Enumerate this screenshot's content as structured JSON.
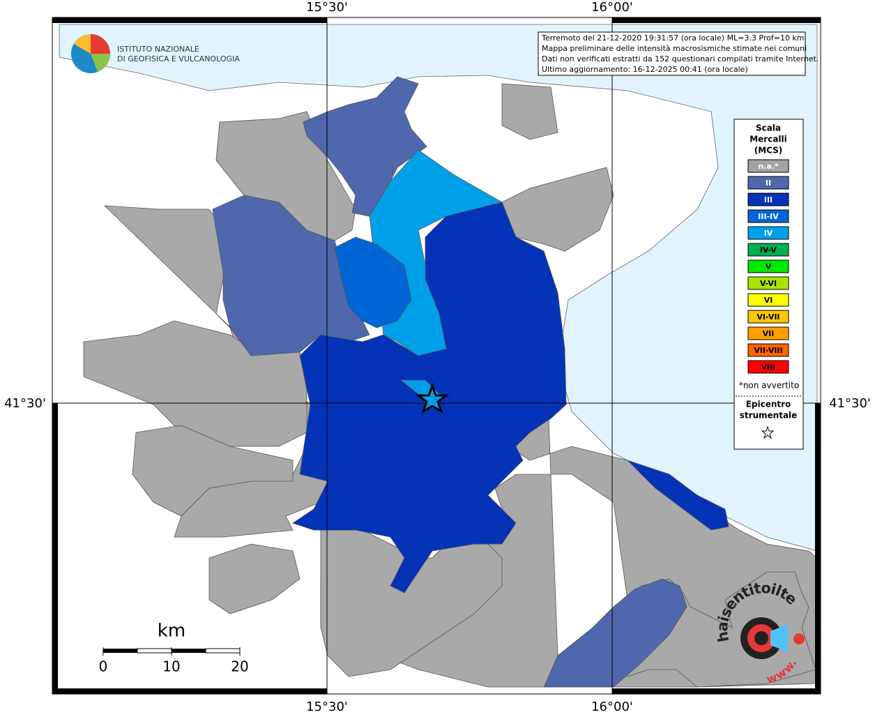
{
  "coordinates": {
    "top": [
      "15°30'",
      "16°00'"
    ],
    "bottom": [
      "15°30'",
      "16°00'"
    ],
    "left": "41°30'",
    "right": "41°30'"
  },
  "info": [
    "Terremoto del 21-12-2020 19:31:57 (ora locale) ML=3.3 Prof=10 km",
    "Mappa preliminare delle intensità macrosismiche stimate nei comuni",
    "Dati non verificati estratti da 152 questionari compilati tramite Internet.",
    "Ultimo aggiornamento: 16-12-2025 00:41 (ora locale)"
  ],
  "logo": {
    "lines": [
      "ISTITUTO NAZIONALE",
      "DI GEOFISICA E VULCANOLOGIA"
    ]
  },
  "legend": {
    "title": [
      "Scala",
      "Mercalli",
      "(MCS)"
    ],
    "items": [
      {
        "label": "n.a.*",
        "color": "#a3a3a3",
        "text_color": "#ffffff"
      },
      {
        "label": "II",
        "color": "#4f67ad",
        "text_color": "#ffffff"
      },
      {
        "label": "III",
        "color": "#0433b8",
        "text_color": "#ffffff"
      },
      {
        "label": "III-IV",
        "color": "#0066d6",
        "text_color": "#ffffff"
      },
      {
        "label": "IV",
        "color": "#00a0e9",
        "text_color": "#ffffff"
      },
      {
        "label": "IV-V",
        "color": "#00b050",
        "text_color": "#000000"
      },
      {
        "label": "V",
        "color": "#00e800",
        "text_color": "#000000"
      },
      {
        "label": "V-VI",
        "color": "#a8e600",
        "text_color": "#000000"
      },
      {
        "label": "VI",
        "color": "#ffff00",
        "text_color": "#000000"
      },
      {
        "label": "VI-VII",
        "color": "#ffc800",
        "text_color": "#000000"
      },
      {
        "label": "VII",
        "color": "#ffa000",
        "text_color": "#000000"
      },
      {
        "label": "VII-VIII",
        "color": "#ff6400",
        "text_color": "#000000"
      },
      {
        "label": "VIII",
        "color": "#ff0000",
        "text_color": "#000000"
      }
    ],
    "note": "*non avvertito",
    "epicenter": [
      "Epicentro",
      "strumentale"
    ]
  },
  "scale_bar": {
    "unit": "km",
    "ticks": [
      "0",
      "10",
      "20"
    ]
  },
  "badge": {
    "text": "haisentitoilterremoto.it",
    "prefix": "www."
  }
}
